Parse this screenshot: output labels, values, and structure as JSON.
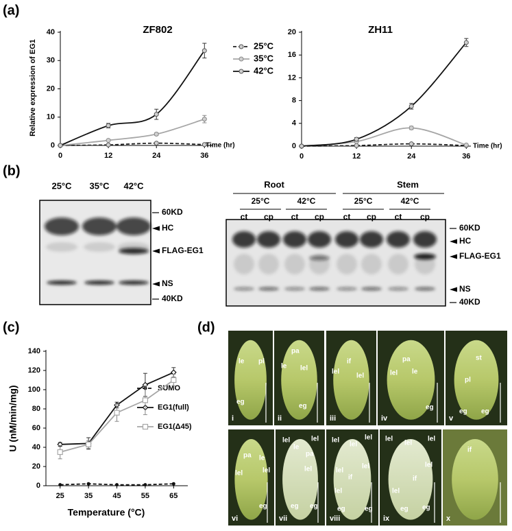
{
  "panel_labels": [
    "(a)",
    "(b)",
    "(c)",
    "(d)"
  ],
  "chart_data": [
    {
      "type": "line",
      "title": "ZF802",
      "y_label": "Relative expression of EG1",
      "x_label": "Time (hr)",
      "smooth": true,
      "marker": "circle",
      "x": [
        0,
        12,
        24,
        36
      ],
      "xlim": [
        0,
        38
      ],
      "xticks": [
        0,
        12,
        24,
        36
      ],
      "ylim": [
        0,
        40
      ],
      "yticks": [
        0,
        10,
        20,
        30,
        40
      ],
      "legend": "upper right",
      "series": [
        {
          "name": "25°C",
          "color": "#222222",
          "dash": true,
          "values": [
            0,
            0.2,
            0.8,
            0.3
          ],
          "errors": [
            0,
            0.1,
            0.2,
            0.1
          ]
        },
        {
          "name": "35°C",
          "color": "#a6a6a6",
          "values": [
            0,
            1.8,
            4,
            9.3
          ],
          "errors": [
            0,
            0.3,
            0.5,
            1.3
          ]
        },
        {
          "name": "42°C",
          "color": "#111111",
          "values": [
            0,
            7,
            11,
            33.5
          ],
          "errors": [
            0,
            0.8,
            1.8,
            2.6
          ]
        }
      ]
    },
    {
      "type": "line",
      "title": "ZH11",
      "x_label": "Time (hr)",
      "smooth": true,
      "marker": "circle",
      "x": [
        0,
        12,
        24,
        36
      ],
      "xlim": [
        0,
        37
      ],
      "xticks": [
        0,
        12,
        24,
        36
      ],
      "ylim": [
        0,
        20
      ],
      "yticks": [
        0,
        4,
        8,
        12,
        16,
        20
      ],
      "series": [
        {
          "color": "#222222",
          "dash": true,
          "values": [
            0,
            0.1,
            0.4,
            0.1
          ],
          "errors": [
            0,
            0.05,
            0.1,
            0.05
          ]
        },
        {
          "color": "#a6a6a6",
          "values": [
            0,
            0.8,
            3.2,
            0.2
          ],
          "errors": [
            0,
            0.2,
            0.3,
            0.1
          ]
        },
        {
          "color": "#111111",
          "values": [
            0,
            1.2,
            7,
            18.2
          ],
          "errors": [
            0,
            0.3,
            0.5,
            0.7
          ]
        }
      ]
    },
    {
      "type": "line",
      "y_label": "U (nM/min/mg)",
      "x_label": "Temperature (°C)",
      "smooth": false,
      "legend": "right",
      "x": [
        25,
        35,
        45,
        55,
        65
      ],
      "xlim": [
        20,
        70
      ],
      "xticks": [
        25,
        35,
        45,
        55,
        65
      ],
      "ylim": [
        0,
        140
      ],
      "yticks": [
        0,
        20,
        40,
        60,
        80,
        100,
        120,
        140
      ],
      "series": [
        {
          "name": "SUMO",
          "color": "#111111",
          "dash": true,
          "marker": "dot",
          "values": [
            1,
            2,
            1,
            1,
            2
          ]
        },
        {
          "name": "EG1(full)",
          "color": "#111111",
          "marker": "diamond",
          "values": [
            43,
            44,
            84,
            105,
            118
          ],
          "errors": [
            2,
            6,
            3,
            12,
            5
          ]
        },
        {
          "name": "EG1(Δ45)",
          "color": "#a6a6a6",
          "marker": "square",
          "values": [
            35,
            43,
            76,
            89,
            110
          ],
          "errors": [
            7,
            4,
            9,
            15,
            6
          ]
        }
      ]
    }
  ],
  "blots": {
    "left": {
      "lanes": [
        "25°C",
        "35°C",
        "42°C"
      ],
      "markers": [
        "60KD",
        "HC",
        "FLAG-EG1",
        "NS",
        "40KD"
      ]
    },
    "right": {
      "tissues": [
        "Root",
        "Stem"
      ],
      "temps": [
        "25°C",
        "42°C",
        "25°C",
        "42°C"
      ],
      "lanes": [
        "ct",
        "cp",
        "ct",
        "cp",
        "ct",
        "cp",
        "ct",
        "cp"
      ],
      "markers": [
        "60KD",
        "HC",
        "FLAG-EG1",
        "NS",
        "40KD"
      ]
    }
  },
  "images": [
    {
      "numeral": "i",
      "parts": [
        "le",
        "pl",
        "eg"
      ]
    },
    {
      "numeral": "ii",
      "parts": [
        "pa",
        "le",
        "lel",
        "eg"
      ]
    },
    {
      "numeral": "iii",
      "parts": [
        "if",
        "lel",
        "lel"
      ]
    },
    {
      "numeral": "iv",
      "parts": [
        "pa",
        "lel",
        "le",
        "eg"
      ]
    },
    {
      "numeral": "v",
      "parts": [
        "st",
        "pl",
        "eg",
        "eg"
      ]
    },
    {
      "numeral": "vi",
      "parts": [
        "pa",
        "le",
        "lel",
        "lel",
        "eg"
      ]
    },
    {
      "numeral": "vii",
      "parts": [
        "lel",
        "lel",
        "le",
        "pa",
        "lel",
        "eg",
        "eg"
      ]
    },
    {
      "numeral": "viii",
      "parts": [
        "lel",
        "lel",
        "lel",
        "lel",
        "lel",
        "if",
        "lel",
        "eg",
        "eg"
      ]
    },
    {
      "numeral": "ix",
      "parts": [
        "lel",
        "lel",
        "lel",
        "lel",
        "if",
        "lel",
        "eg",
        "eg"
      ]
    },
    {
      "numeral": "x",
      "parts": [
        "if"
      ]
    }
  ]
}
